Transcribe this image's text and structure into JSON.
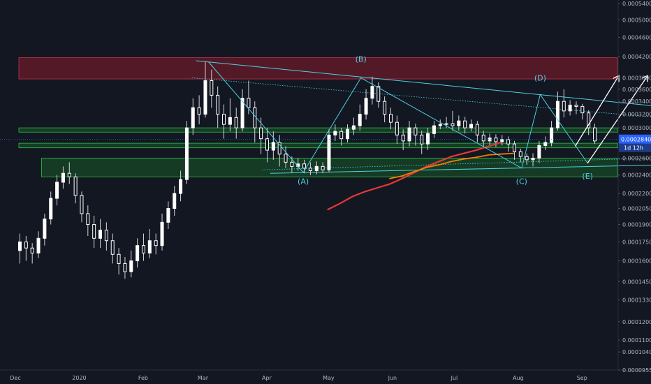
{
  "chart_data": {
    "type": "candlestick",
    "y_scale": "log",
    "ylim": [
      9.55e-05,
      0.00054
    ],
    "price_ticks": [
      "0.0005400",
      "0.0005000",
      "0.0004600",
      "0.0004200",
      "0.0003800",
      "0.0003600",
      "0.0003400",
      "0.0003200",
      "0.0003000",
      "0.0002800",
      "0.0002600",
      "0.0002400",
      "0.0002200",
      "0.0002050",
      "0.0001900",
      "0.0001750",
      "0.0001600",
      "0.0001450",
      "0.0001330",
      "0.0001200",
      "0.0001100",
      "0.0001040",
      "0.0000955"
    ],
    "price_tick_values": [
      0.00054,
      0.0005,
      0.00046,
      0.00042,
      0.00038,
      0.00036,
      0.00034,
      0.00032,
      0.0003,
      0.00028,
      0.00026,
      0.00024,
      0.00022,
      0.000205,
      0.00019,
      0.000175,
      0.00016,
      0.000145,
      0.000133,
      0.00012,
      0.00011,
      0.000104,
      9.55e-05
    ],
    "time_ticks": [
      "Dec",
      "2020",
      "Feb",
      "Mar",
      "Apr",
      "May",
      "Jun",
      "Jul",
      "Aug",
      "Sep"
    ],
    "time_tick_days": [
      0,
      31,
      62,
      91,
      122,
      152,
      183,
      213,
      244,
      275
    ],
    "current_price": {
      "value_label": "0.0002840",
      "countdown": "1d 12h",
      "value": 0.000284
    },
    "colors": {
      "background": "#131722",
      "up": "#ffffff",
      "down": "#ffffff",
      "wick": "#d1d4dc",
      "wave": "#4dd0e1",
      "ma_red": "#e53935",
      "ma_orange": "#f57c00",
      "resistance_zone": "#8b1c2c",
      "support_zone": "#1b7f2a",
      "price_badge": "#2962ff"
    },
    "candles": [
      [
        0.000168,
        0.000175,
        0.000182,
        0.000158
      ],
      [
        0.000175,
        0.00017,
        0.00018,
        0.00016
      ],
      [
        0.00017,
        0.000166,
        0.000174,
        0.000158
      ],
      [
        0.000166,
        0.000178,
        0.000184,
        0.000162
      ],
      [
        0.000178,
        0.000195,
        0.0002,
        0.000172
      ],
      [
        0.000195,
        0.000215,
        0.000222,
        0.00019
      ],
      [
        0.000215,
        0.000232,
        0.00024,
        0.000208
      ],
      [
        0.000232,
        0.000242,
        0.00025,
        0.000225
      ],
      [
        0.000242,
        0.000238,
        0.000255,
        0.00023
      ],
      [
        0.000238,
        0.000218,
        0.000242,
        0.00021
      ],
      [
        0.000218,
        0.0002,
        0.000222,
        0.000192
      ],
      [
        0.0002,
        0.00019,
        0.000208,
        0.00018
      ],
      [
        0.00019,
        0.000178,
        0.000198,
        0.00017
      ],
      [
        0.000178,
        0.000185,
        0.000195,
        0.00017
      ],
      [
        0.000185,
        0.000176,
        0.000192,
        0.000168
      ],
      [
        0.000176,
        0.000165,
        0.000182,
        0.000158
      ],
      [
        0.000165,
        0.000158,
        0.00017,
        0.00015
      ],
      [
        0.000158,
        0.000152,
        0.000163,
        0.000147
      ],
      [
        0.000152,
        0.00016,
        0.000168,
        0.000148
      ],
      [
        0.00016,
        0.000172,
        0.000178,
        0.000155
      ],
      [
        0.000172,
        0.000166,
        0.000182,
        0.00016
      ],
      [
        0.000166,
        0.000176,
        0.000186,
        0.000162
      ],
      [
        0.000176,
        0.000172,
        0.000182,
        0.000165
      ],
      [
        0.000172,
        0.000192,
        0.0002,
        0.000168
      ],
      [
        0.000192,
        0.000205,
        0.000212,
        0.000186
      ],
      [
        0.000205,
        0.00022,
        0.000228,
        0.000198
      ],
      [
        0.00022,
        0.000235,
        0.000245,
        0.000212
      ],
      [
        0.000235,
        0.0003,
        0.00031,
        0.00023
      ],
      [
        0.0003,
        0.00033,
        0.000345,
        0.00029
      ],
      [
        0.00033,
        0.00032,
        0.00035,
        0.000305
      ],
      [
        0.00032,
        0.000375,
        0.00041,
        0.000315
      ],
      [
        0.000375,
        0.00035,
        0.000395,
        0.00033
      ],
      [
        0.00035,
        0.00032,
        0.000365,
        0.0003
      ],
      [
        0.00032,
        0.000305,
        0.000335,
        0.000285
      ],
      [
        0.000305,
        0.000315,
        0.000345,
        0.000295
      ],
      [
        0.000315,
        0.0003,
        0.00033,
        0.000285
      ],
      [
        0.0003,
        0.000345,
        0.00036,
        0.000295
      ],
      [
        0.000345,
        0.00033,
        0.000375,
        0.00032
      ],
      [
        0.00033,
        0.0003,
        0.00034,
        0.00028
      ],
      [
        0.0003,
        0.000285,
        0.000315,
        0.000265
      ],
      [
        0.000285,
        0.00027,
        0.0003,
        0.000255
      ],
      [
        0.00027,
        0.00028,
        0.000295,
        0.000258
      ],
      [
        0.00028,
        0.000265,
        0.00029,
        0.00025
      ],
      [
        0.000265,
        0.000255,
        0.000275,
        0.000248
      ],
      [
        0.000255,
        0.00025,
        0.000262,
        0.000243
      ],
      [
        0.00025,
        0.000253,
        0.00026,
        0.000245
      ],
      [
        0.000253,
        0.000248,
        0.000258,
        0.000242
      ],
      [
        0.000248,
        0.000245,
        0.000255,
        0.00024
      ],
      [
        0.000245,
        0.00025,
        0.000256,
        0.000241
      ],
      [
        0.00025,
        0.000246,
        0.000255,
        0.000242
      ],
      [
        0.000246,
        0.00029,
        0.000298,
        0.000243
      ],
      [
        0.00029,
        0.000295,
        0.000305,
        0.000282
      ],
      [
        0.000295,
        0.000285,
        0.0003,
        0.000276
      ],
      [
        0.000285,
        0.000298,
        0.000305,
        0.00028
      ],
      [
        0.000298,
        0.000303,
        0.000315,
        0.00029
      ],
      [
        0.000303,
        0.00032,
        0.000335,
        0.000296
      ],
      [
        0.00032,
        0.000345,
        0.00036,
        0.000312
      ],
      [
        0.000345,
        0.000365,
        0.000382,
        0.000335
      ],
      [
        0.000365,
        0.00034,
        0.000372,
        0.00033
      ],
      [
        0.00034,
        0.00032,
        0.000348,
        0.000308
      ],
      [
        0.00032,
        0.000308,
        0.00033,
        0.000298
      ],
      [
        0.000308,
        0.00029,
        0.000318,
        0.000278
      ],
      [
        0.00029,
        0.000282,
        0.000298,
        0.00027
      ],
      [
        0.000282,
        0.0003,
        0.00031,
        0.000275
      ],
      [
        0.0003,
        0.00029,
        0.000306,
        0.000276
      ],
      [
        0.00029,
        0.000278,
        0.000296,
        0.000265
      ],
      [
        0.000278,
        0.000292,
        0.0003,
        0.00027
      ],
      [
        0.000292,
        0.000303,
        0.00031,
        0.000286
      ],
      [
        0.000303,
        0.000305,
        0.000312,
        0.000298
      ],
      [
        0.000305,
        0.000306,
        0.000316,
        0.0003
      ],
      [
        0.000306,
        0.000303,
        0.000325,
        0.000296
      ],
      [
        0.000303,
        0.00031,
        0.000318,
        0.000296
      ],
      [
        0.00031,
        0.0003,
        0.000316,
        0.000292
      ],
      [
        0.0003,
        0.000305,
        0.000312,
        0.000295
      ],
      [
        0.000305,
        0.00029,
        0.00031,
        0.00028
      ],
      [
        0.00029,
        0.000282,
        0.000296,
        0.000274
      ],
      [
        0.000282,
        0.000286,
        0.000292,
        0.000276
      ],
      [
        0.000286,
        0.000281,
        0.000291,
        0.000274
      ],
      [
        0.000281,
        0.000284,
        0.00029,
        0.000276
      ],
      [
        0.000284,
        0.000278,
        0.000288,
        0.000268
      ],
      [
        0.000278,
        0.000268,
        0.000282,
        0.000258
      ],
      [
        0.000268,
        0.000262,
        0.000272,
        0.000255
      ],
      [
        0.000262,
        0.000258,
        0.000266,
        0.000252
      ],
      [
        0.000258,
        0.00026,
        0.000266,
        0.00025
      ],
      [
        0.00026,
        0.000276,
        0.000282,
        0.000254
      ],
      [
        0.000276,
        0.00028,
        0.000288,
        0.00027
      ],
      [
        0.00028,
        0.0003,
        0.00031,
        0.000275
      ],
      [
        0.0003,
        0.00034,
        0.000356,
        0.000296
      ],
      [
        0.00034,
        0.000325,
        0.00036,
        0.000315
      ],
      [
        0.000325,
        0.000334,
        0.000342,
        0.000318
      ],
      [
        0.000334,
        0.000332,
        0.00034,
        0.00032
      ],
      [
        0.000332,
        0.000322,
        0.000336,
        0.000312
      ],
      [
        0.000322,
        0.0003,
        0.000326,
        0.00029
      ],
      [
        0.0003,
        0.000282,
        0.000306,
        0.000278
      ]
    ],
    "series": [
      {
        "name": "",
        "color": "#e53935",
        "points": [
          [
            150,
            0.000204
          ],
          [
            156,
            0.00021
          ],
          [
            162,
            0.000217
          ],
          [
            168,
            0.000222
          ],
          [
            174,
            0.000226
          ],
          [
            180,
            0.00023
          ],
          [
            186,
            0.000236
          ],
          [
            192,
            0.000243
          ],
          [
            198,
            0.00025
          ],
          [
            204,
            0.000256
          ],
          [
            210,
            0.000262
          ],
          [
            216,
            0.000266
          ],
          [
            222,
            0.00027
          ],
          [
            228,
            0.000275
          ],
          [
            234,
            0.00028
          ]
        ]
      },
      {
        "name": "",
        "color": "#f57c00",
        "points": [
          [
            180,
            0.000236
          ],
          [
            186,
            0.000239
          ],
          [
            192,
            0.000244
          ],
          [
            198,
            0.000249
          ],
          [
            204,
            0.000252
          ],
          [
            210,
            0.000256
          ],
          [
            216,
            0.000259
          ],
          [
            222,
            0.000261
          ],
          [
            228,
            0.000264
          ],
          [
            234,
            0.000265
          ],
          [
            240,
            0.000266
          ]
        ]
      }
    ],
    "zones": [
      {
        "kind": "resistance",
        "y": [
          0.000378,
          0.000418
        ],
        "x_days": [
          0,
          305
        ]
      },
      {
        "kind": "support",
        "y": [
          0.000294,
          0.0003
        ],
        "x_days": [
          0,
          313
        ]
      },
      {
        "kind": "support",
        "y": [
          0.000273,
          0.000279
        ],
        "x_days": [
          0,
          301
        ]
      },
      {
        "kind": "support",
        "y": [
          0.000238,
          0.00026
        ],
        "x_days": [
          11,
          301
        ]
      }
    ],
    "trendlines": [
      {
        "style": "solid",
        "color": "#4dd0e1",
        "from": [
          86,
          0.000412
        ],
        "to": [
          317,
          0.00033
        ]
      },
      {
        "style": "dotted",
        "color": "#4dd0e1",
        "from": [
          84,
          0.00038
        ],
        "to": [
          307,
          0.000316
        ]
      },
      {
        "style": "solid",
        "color": "#4dd0e1",
        "from": [
          122,
          0.000242
        ],
        "to": [
          317,
          0.000252
        ]
      },
      {
        "style": "dotted",
        "color": "#4dd0e1",
        "from": [
          118,
          0.000246
        ],
        "to": [
          307,
          0.00026
        ]
      }
    ],
    "wave": [
      [
        92,
        0.00041
      ],
      [
        138,
        0.000243
      ],
      [
        166,
        0.00038
      ],
      [
        244,
        0.000248
      ],
      [
        253,
        0.000351
      ],
      [
        276,
        0.000254
      ]
    ],
    "wave_labels": [
      {
        "text": "(A)",
        "x_day": 138,
        "y": 0.00023
      },
      {
        "text": "(B)",
        "x_day": 166,
        "y": 0.00041
      },
      {
        "text": "(C)",
        "x_day": 244,
        "y": 0.00023
      },
      {
        "text": "(D)",
        "x_day": 253,
        "y": 0.000375
      },
      {
        "text": "(E)",
        "x_day": 276,
        "y": 0.000236
      }
    ],
    "projection_arrows": [
      {
        "points": [
          [
            270,
            0.000275
          ],
          [
            291,
            0.000383
          ]
        ],
        "color": "#ffffff"
      },
      {
        "points": [
          [
            276,
            0.000254
          ],
          [
            305,
            0.000383
          ]
        ],
        "color": "#ffffff"
      }
    ]
  }
}
